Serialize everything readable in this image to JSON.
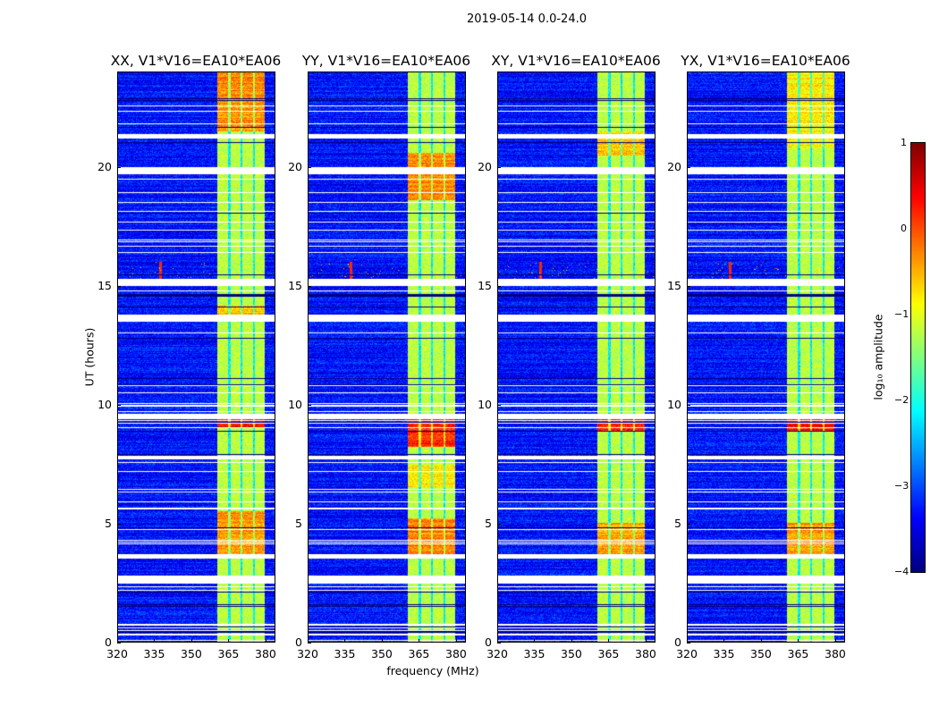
{
  "chart_data": {
    "type": "heatmap",
    "suptitle": "2019-05-14 0.0-24.0",
    "xlabel": "frequency (MHz)",
    "ylabel": "UT (hours)",
    "xlim": [
      320,
      384
    ],
    "ylim": [
      0,
      24
    ],
    "xticks": [
      "320",
      "335",
      "350",
      "365",
      "380"
    ],
    "xtick_values": [
      320,
      335,
      350,
      365,
      380
    ],
    "yticks": [
      "0",
      "5",
      "10",
      "15",
      "20"
    ],
    "ytick_values": [
      0,
      5,
      10,
      15,
      20
    ],
    "panels": [
      {
        "title": "XX, V1*V16=EA10*EA06",
        "bright": [
          [
            21.5,
            24,
            -0.3
          ],
          [
            3.6,
            5.5,
            -0.4
          ],
          [
            9.0,
            9.6,
            0.4
          ],
          [
            13.8,
            14.2,
            -0.6
          ]
        ]
      },
      {
        "title": "YY, V1*V16=EA10*EA06",
        "bright": [
          [
            18.6,
            20.6,
            -0.3
          ],
          [
            3.6,
            5.2,
            -0.3
          ],
          [
            8.2,
            9.6,
            0.2
          ],
          [
            6.5,
            7.5,
            -0.8
          ]
        ]
      },
      {
        "title": "XY, V1*V16=EA10*EA06",
        "bright": [
          [
            3.6,
            5.0,
            -0.4
          ],
          [
            8.9,
            9.6,
            0.3
          ],
          [
            20.5,
            21.5,
            -0.6
          ]
        ]
      },
      {
        "title": "YX, V1*V16=EA10*EA06",
        "bright": [
          [
            3.6,
            5.0,
            -0.4
          ],
          [
            8.9,
            9.6,
            0.3
          ],
          [
            20.8,
            24,
            -0.8
          ]
        ]
      }
    ],
    "background_log_amp": -3.3,
    "band_mhz": [
      360.5,
      380
    ],
    "band_log_amp": -1.2,
    "band_notches_mhz": [
      365.5,
      370.5,
      375.5
    ],
    "flagged_hours": [
      [
        21.2,
        21.4
      ],
      [
        19.7,
        20.0
      ],
      [
        15.0,
        15.3
      ],
      [
        13.5,
        13.8
      ],
      [
        9.4,
        9.6
      ],
      [
        7.7,
        7.85
      ],
      [
        3.5,
        3.7
      ],
      [
        2.5,
        2.8
      ]
    ],
    "rfi_hours": [
      15.3,
      16.0
    ],
    "colorbar": {
      "label": "log₁₀ amplitude",
      "range": [
        -4,
        1
      ],
      "ticks": [
        "1",
        "0",
        "−1",
        "−2",
        "−3",
        "−4"
      ],
      "tick_values": [
        1,
        0,
        -1,
        -2,
        -3,
        -4
      ],
      "colormap": "jet"
    }
  }
}
